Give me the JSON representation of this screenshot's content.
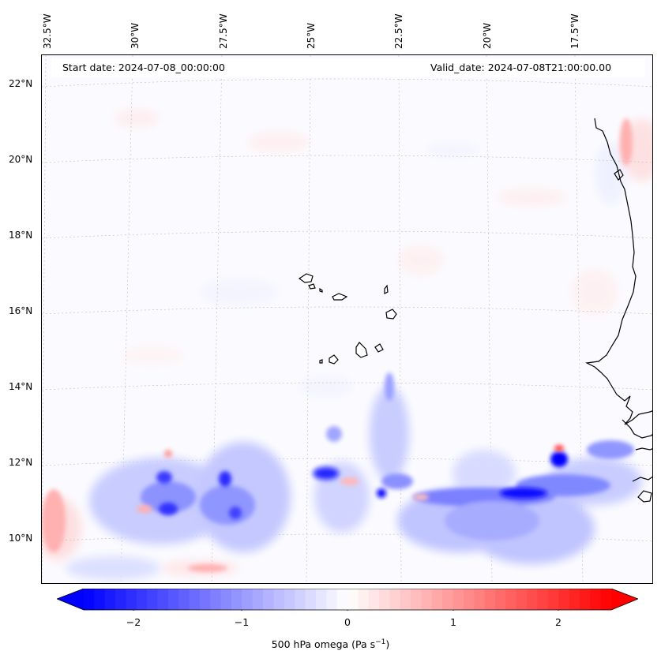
{
  "header": {
    "start_date": "Start date: 2024-07-08_00:00:00",
    "valid_date": "Valid_date: 2024-07-08T21:00:00.00"
  },
  "axes": {
    "lon_labels": [
      "32.5°W",
      "30°W",
      "27.5°W",
      "25°W",
      "22.5°W",
      "20°W",
      "17.5°W"
    ],
    "lat_labels": [
      "22°N",
      "20°N",
      "18°N",
      "16°N",
      "14°N",
      "12°N",
      "10°N"
    ]
  },
  "colorbar": {
    "ticks": [
      "−2",
      "−1",
      "0",
      "1",
      "2"
    ],
    "label_main": "500 hPa omega (Pa s",
    "label_sup": "−1",
    "label_end": ")",
    "cmap_low": "#0000ff",
    "cmap_mid": "#ffffff",
    "cmap_high": "#ff0000",
    "range": [
      -2.5,
      2.5
    ]
  },
  "map": {
    "field": "500 hPa omega",
    "region": "Eastern tropical Atlantic, Cape Verde Islands and West African coast",
    "grid": true
  }
}
